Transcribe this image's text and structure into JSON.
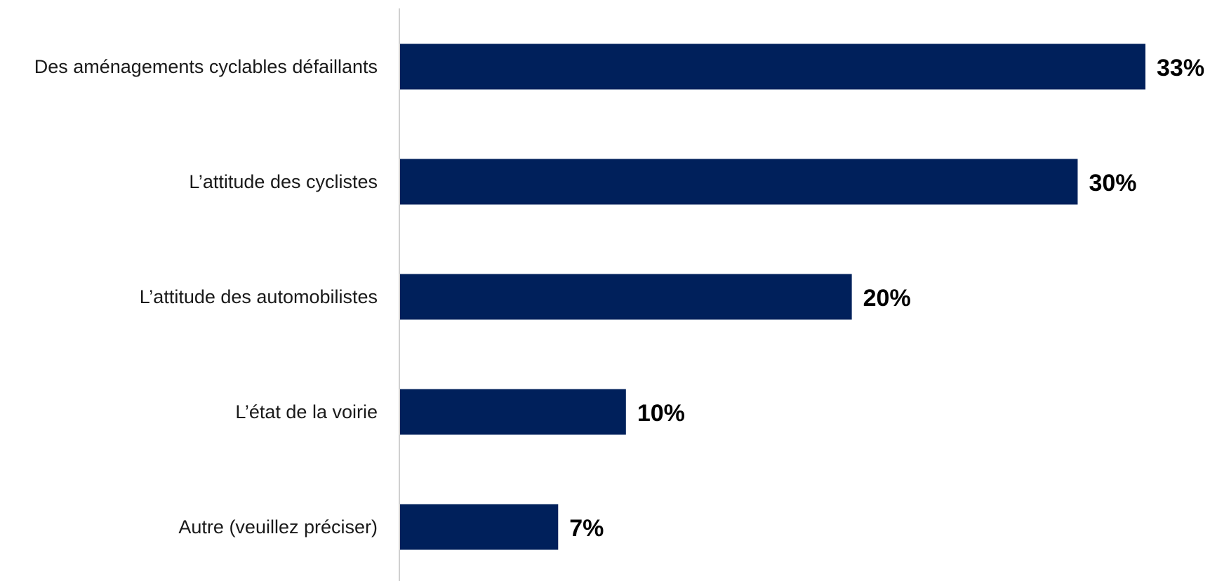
{
  "chart_data": {
    "type": "bar",
    "orientation": "horizontal",
    "categories": [
      "Des aménagements cyclables défaillants",
      "L’attitude des cyclistes",
      "L’attitude des automobilistes",
      "L’état de la voirie",
      "Autre (veuillez préciser)"
    ],
    "values": [
      33,
      30,
      20,
      10,
      7
    ],
    "value_labels": [
      "33%",
      "30%",
      "20%",
      "10%",
      "7%"
    ],
    "unit": "%",
    "xlim": [
      0,
      33
    ],
    "title": "",
    "xlabel": "",
    "ylabel": "",
    "grid": false,
    "legend": "none",
    "bar_color": "#00205b",
    "axis_color": "#d0d0d0"
  }
}
